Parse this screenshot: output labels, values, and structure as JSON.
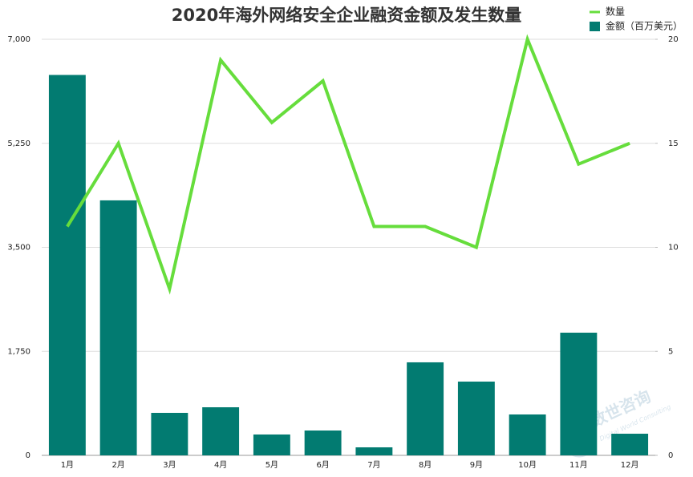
{
  "chart_data": {
    "type": "bar-line",
    "title": "2020年海外网络安全企业融资金额及发生数量",
    "categories": [
      "1月",
      "2月",
      "3月",
      "4月",
      "5月",
      "6月",
      "7月",
      "8月",
      "9月",
      "10月",
      "11月",
      "12月"
    ],
    "series": [
      {
        "name": "数量",
        "type": "line",
        "axis": "y2",
        "color": "#66dd3c",
        "values": [
          11,
          15,
          8,
          19,
          16,
          18,
          11,
          11,
          10,
          20,
          14,
          15
        ]
      },
      {
        "name": "金额（百万美元）",
        "type": "bar",
        "axis": "y",
        "color": "#027b71",
        "values": [
          6400,
          4290,
          715,
          809,
          351,
          418,
          135,
          1565,
          1241,
          688,
          2064,
          364
        ]
      }
    ],
    "ylim": [
      0,
      7000
    ],
    "yticks": [
      {
        "value": 0,
        "label": "0"
      },
      {
        "value": 1750,
        "label": "1,750"
      },
      {
        "value": 3500,
        "label": "3,500"
      },
      {
        "value": 5250,
        "label": "5,250"
      },
      {
        "value": 7000,
        "label": "7,000"
      }
    ],
    "y2lim": [
      0,
      20
    ],
    "y2ticks": [
      0,
      5,
      10,
      15,
      20
    ],
    "grid": true,
    "legend": "top-right",
    "watermark": {
      "title": "数世咨询",
      "subtitle": "Digital World Consulting"
    }
  }
}
